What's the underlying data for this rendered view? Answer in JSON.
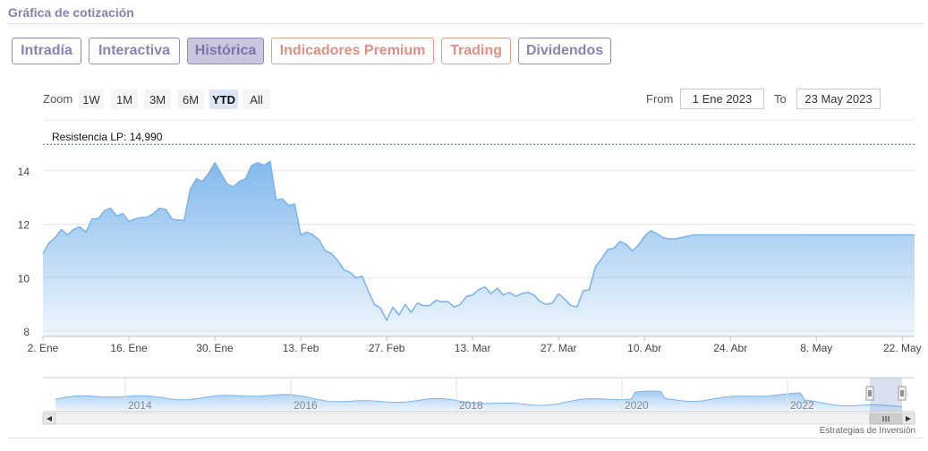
{
  "section_title": "Gráfica de cotización",
  "tabs": [
    {
      "label": "Intradía",
      "state": "default"
    },
    {
      "label": "Interactiva",
      "state": "default"
    },
    {
      "label": "Histórica",
      "state": "active"
    },
    {
      "label": "Indicadores Premium",
      "state": "premium"
    },
    {
      "label": "Trading",
      "state": "premium"
    },
    {
      "label": "Dividendos",
      "state": "default"
    }
  ],
  "zoom": {
    "label": "Zoom",
    "buttons": [
      "1W",
      "1M",
      "3M",
      "6M",
      "YTD",
      "All"
    ],
    "selected": "YTD"
  },
  "range": {
    "from_label": "From",
    "from_value": "1 Ene 2023",
    "to_label": "To",
    "to_value": "23 May 2023"
  },
  "watermark": "Estrategias de Inversión",
  "colors": {
    "line": "#7cb5ec",
    "area_top": "#7cb5ec",
    "resistance": "#2e7d32",
    "tab_border": "#948cb8",
    "premium": "#e59e92"
  },
  "chart_data": {
    "type": "area",
    "y_ticks": [
      8,
      10,
      12,
      14
    ],
    "ylim": [
      7.8,
      15.7
    ],
    "x_ticks": [
      "2. Ene",
      "16. Ene",
      "30. Ene",
      "13. Feb",
      "27. Feb",
      "13. Mar",
      "27. Mar",
      "10. Abr",
      "24. Abr",
      "8. May",
      "22. May"
    ],
    "x_tick_days": [
      1,
      15,
      29,
      43,
      57,
      71,
      85,
      99,
      113,
      127,
      141
    ],
    "xlim": [
      1,
      143
    ],
    "resistance": {
      "label": "Resistencia LP: 14,990",
      "value": 14.99
    },
    "series": [
      {
        "x": [
          1,
          2,
          3,
          4,
          5,
          6,
          7,
          8,
          9,
          10,
          11,
          12,
          13,
          14,
          15,
          16,
          17,
          18,
          19,
          20,
          21,
          22,
          23,
          24,
          25,
          26,
          27,
          28,
          29,
          30,
          31,
          32,
          33,
          34,
          35,
          36,
          37,
          38,
          39,
          40,
          41,
          42,
          43,
          44,
          45,
          46,
          47,
          48,
          49,
          50,
          51,
          52,
          53,
          54,
          55,
          56,
          57,
          58,
          59,
          60,
          61,
          62,
          63,
          64,
          65,
          66,
          67,
          68,
          69,
          70,
          71,
          72,
          73,
          74,
          75,
          76,
          77,
          78,
          79,
          80,
          81,
          82,
          83,
          84,
          85,
          86,
          87,
          88,
          89,
          90,
          91,
          92,
          93,
          94,
          95,
          96,
          97,
          98,
          99,
          100,
          101,
          102,
          103,
          104,
          105,
          106,
          107,
          108,
          109,
          110,
          111,
          112,
          113,
          114,
          115,
          116,
          117,
          118,
          119,
          120,
          121,
          122,
          123,
          124,
          125,
          126,
          127,
          128,
          129,
          130,
          131,
          132,
          133,
          134,
          135,
          136,
          137,
          138,
          139,
          140,
          141,
          142,
          143
        ],
        "values": [
          10.9,
          11.3,
          11.5,
          11.8,
          11.6,
          11.8,
          11.9,
          11.7,
          12.2,
          12.2,
          12.5,
          12.6,
          12.3,
          12.4,
          12.1,
          12.2,
          12.25,
          12.25,
          12.4,
          12.6,
          12.55,
          12.2,
          12.15,
          12.15,
          13.3,
          13.7,
          13.6,
          13.9,
          14.3,
          13.9,
          13.5,
          13.4,
          13.6,
          13.7,
          14.2,
          14.3,
          14.2,
          14.35,
          12.9,
          12.95,
          12.7,
          12.75,
          11.6,
          11.7,
          11.6,
          11.4,
          11.0,
          10.9,
          10.65,
          10.3,
          10.2,
          10.0,
          10.05,
          9.5,
          9.0,
          8.85,
          8.4,
          8.9,
          8.6,
          9.0,
          8.7,
          9.05,
          8.95,
          8.95,
          9.15,
          9.1,
          9.1,
          8.9,
          9.0,
          9.3,
          9.35,
          9.55,
          9.65,
          9.4,
          9.6,
          9.35,
          9.45,
          9.3,
          9.4,
          9.45,
          9.35,
          9.1,
          9.0,
          9.05,
          9.4,
          9.2,
          8.95,
          8.9,
          9.5,
          9.55,
          10.4,
          10.7,
          11.05,
          11.1,
          11.35,
          11.25,
          11.0,
          11.2,
          11.55,
          11.75,
          11.65,
          11.5,
          11.45,
          11.45,
          11.5,
          11.55,
          11.6,
          11.6,
          11.6,
          11.6,
          11.6,
          11.6,
          11.6,
          11.6,
          11.6,
          11.6,
          11.6,
          11.6,
          11.6,
          11.6,
          11.6,
          11.6,
          11.6,
          11.6,
          11.6,
          11.6,
          11.6,
          11.6,
          11.6,
          11.6,
          11.6,
          11.6,
          11.6,
          11.6,
          11.6,
          11.6,
          11.6,
          11.6,
          11.6,
          11.6,
          11.6,
          11.6,
          11.6
        ]
      }
    ],
    "navigator": {
      "x_ticks": [
        "2014",
        "2016",
        "2018",
        "2020",
        "2022"
      ]
    }
  }
}
